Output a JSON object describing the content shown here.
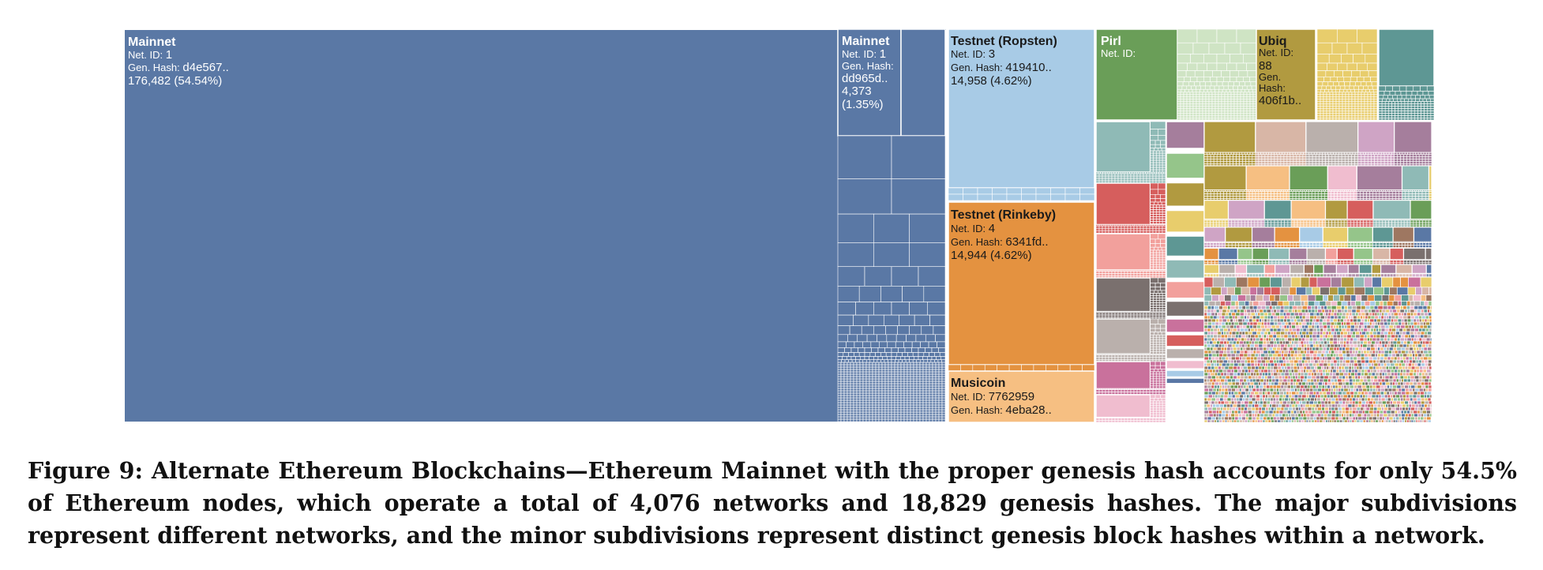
{
  "chart_data": {
    "type": "treemap",
    "title": "",
    "networks": [
      {
        "name": "Mainnet",
        "net_id": "1",
        "gen_hash": "d4e567..",
        "value_label": "176,482 (54.54%)",
        "nodes": 176482,
        "share_pct": 54.54,
        "color": "#5a78a5"
      },
      {
        "name": "Mainnet",
        "net_id": "1",
        "gen_hash": "dd965d..",
        "value_label_1": "4,373",
        "value_label_2": "(1.35%)",
        "nodes": 4373,
        "share_pct": 1.35,
        "color": "#5a78a5"
      },
      {
        "name": "Testnet (Ropsten)",
        "net_id": "3",
        "gen_hash": "419410..",
        "value_label": "14,958 (4.62%)",
        "nodes": 14958,
        "share_pct": 4.62,
        "color": "#a8cbe6"
      },
      {
        "name": "Testnet (Rinkeby)",
        "net_id": "4",
        "gen_hash": "6341fd..",
        "value_label": "14,944 (4.62%)",
        "nodes": 14944,
        "share_pct": 4.62,
        "color": "#e49240"
      },
      {
        "name": "Musicoin",
        "net_id": "7762959",
        "gen_hash": "4eba28..",
        "color": "#f6bf82"
      },
      {
        "name": "Pirl",
        "net_id": "",
        "color": "#6a9e58"
      },
      {
        "name": "Ubiq",
        "net_id": "88",
        "gen_hash": "406f1b..",
        "color": "#b19a40"
      }
    ],
    "field_labels": {
      "net_id": "Net. ID:",
      "gen_hash": "Gen. Hash:",
      "gen_hash_part1": "Gen.",
      "gen_hash_part2": "Hash:"
    },
    "palette": [
      "#5a78a5",
      "#a8cbe6",
      "#e49240",
      "#f6bf82",
      "#6a9e58",
      "#95c58a",
      "#b19a40",
      "#e8cd6c",
      "#5e9794",
      "#8fbab6",
      "#d65e5d",
      "#f2a09c",
      "#7a706e",
      "#bab0ac",
      "#c9719c",
      "#f0bdcf",
      "#a57e9c",
      "#cfa4c5",
      "#9e7761",
      "#d8b6a6"
    ]
  },
  "caption": "Figure 9: Alternate Ethereum Blockchains—Ethereum Mainnet with the proper genesis hash accounts for only 54.5% of Ethereum nodes, which operate a total of 4,076 networks and 18,829 genesis hashes. The major subdivisions represent different networks, and the minor subdivisions represent distinct genesis block hashes within a network."
}
